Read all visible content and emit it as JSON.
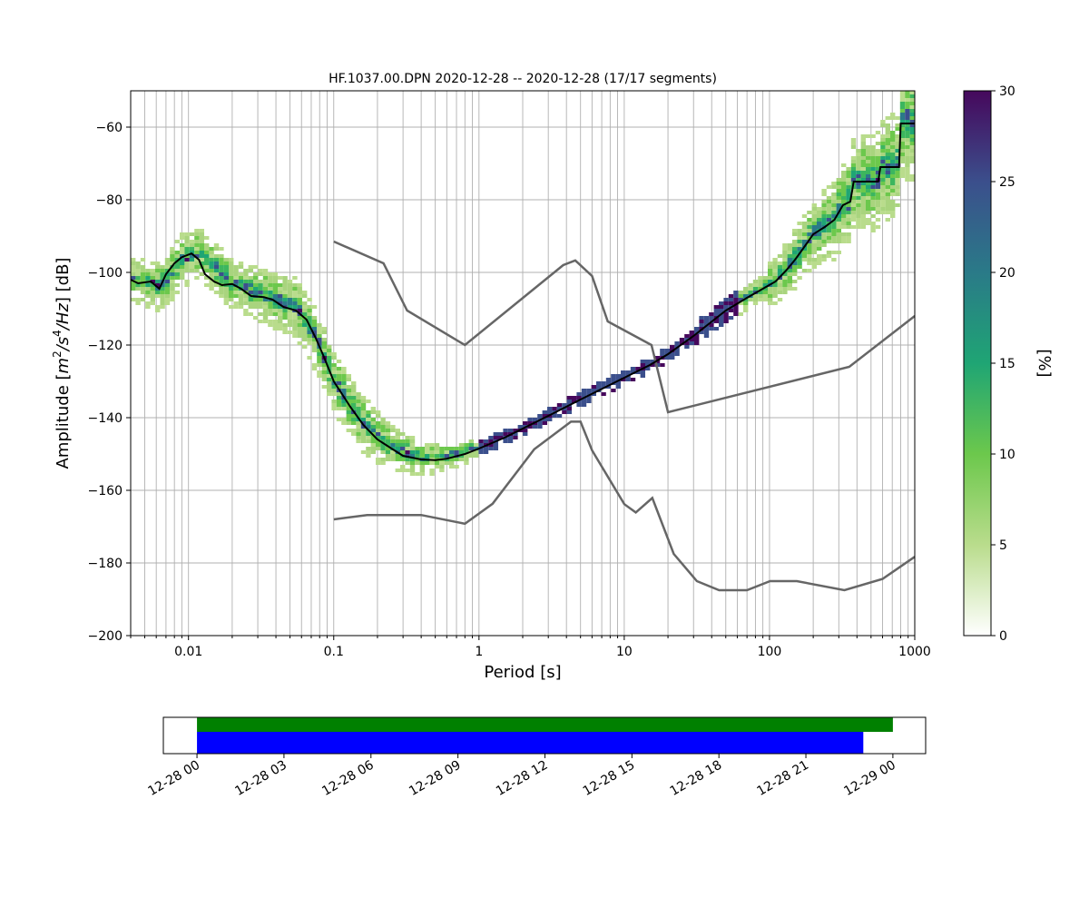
{
  "chart_data": [
    {
      "type": "heatmap",
      "title": "HF.1037.00.DPN   2020-12-28 -- 2020-12-28  (17/17 segments)",
      "xlabel": "Period [s]",
      "ylabel_parts": [
        "Amplitude [",
        "m",
        "2",
        "/",
        "s",
        "4",
        "/",
        "Hz",
        "] [dB]"
      ],
      "x_scale": "log",
      "xlim": [
        0.004,
        1000
      ],
      "ylim": [
        -200,
        -50
      ],
      "grid": true,
      "x_tick_labels": [
        {
          "value": 0.01,
          "label": "0.01"
        },
        {
          "value": 0.1,
          "label": "0.1"
        },
        {
          "value": 1,
          "label": "1"
        },
        {
          "value": 10,
          "label": "10"
        },
        {
          "value": 100,
          "label": "100"
        },
        {
          "value": 1000,
          "label": "1000"
        }
      ],
      "y_ticks": [
        -200,
        -180,
        -160,
        -140,
        -120,
        -100,
        -80,
        -60
      ],
      "y_tick_labels": [
        "−200",
        "−180",
        "−160",
        "−140",
        "−120",
        "−100",
        "−80",
        "−60"
      ],
      "colorbar": {
        "label": "[%]",
        "range": [
          0,
          30
        ],
        "ticks": [
          0,
          5,
          10,
          15,
          20,
          25,
          30
        ],
        "colormap": [
          "#ffffff",
          "#b9dc8c",
          "#6cc84c",
          "#1fa574",
          "#2a7a88",
          "#3b4f8c",
          "#46085c"
        ]
      },
      "mean_curve": {
        "color": "#000000",
        "points": [
          [
            0.004,
            -102
          ],
          [
            0.0045,
            -103
          ],
          [
            0.0055,
            -102.5
          ],
          [
            0.0063,
            -104.5
          ],
          [
            0.007,
            -100.5
          ],
          [
            0.008,
            -97.5
          ],
          [
            0.009,
            -95.8
          ],
          [
            0.0105,
            -94.8
          ],
          [
            0.0118,
            -96.5
          ],
          [
            0.013,
            -100.5
          ],
          [
            0.015,
            -102.5
          ],
          [
            0.017,
            -103.5
          ],
          [
            0.02,
            -103.2
          ],
          [
            0.023,
            -104.5
          ],
          [
            0.027,
            -106.5
          ],
          [
            0.033,
            -106.8
          ],
          [
            0.038,
            -107.5
          ],
          [
            0.045,
            -109.5
          ],
          [
            0.055,
            -110.5
          ],
          [
            0.065,
            -113
          ],
          [
            0.075,
            -118
          ],
          [
            0.085,
            -123
          ],
          [
            0.1,
            -130
          ],
          [
            0.13,
            -137
          ],
          [
            0.16,
            -142
          ],
          [
            0.2,
            -146
          ],
          [
            0.25,
            -148.5
          ],
          [
            0.3,
            -150.5
          ],
          [
            0.4,
            -151.5
          ],
          [
            0.5,
            -151.7
          ],
          [
            0.6,
            -151.3
          ],
          [
            0.8,
            -150
          ],
          [
            1.0,
            -148.5
          ],
          [
            1.5,
            -145.5
          ],
          [
            2,
            -143
          ],
          [
            3,
            -139.5
          ],
          [
            5,
            -135
          ],
          [
            10,
            -129
          ],
          [
            15,
            -125.5
          ],
          [
            20,
            -122.5
          ],
          [
            30,
            -117.5
          ],
          [
            50,
            -110.5
          ],
          [
            70,
            -107
          ],
          [
            90,
            -104.5
          ],
          [
            110,
            -102.5
          ],
          [
            130,
            -99.5
          ],
          [
            150,
            -96.5
          ],
          [
            170,
            -93.5
          ],
          [
            200,
            -89.5
          ],
          [
            240,
            -87.5
          ],
          [
            280,
            -85.5
          ],
          [
            320,
            -81.5
          ],
          [
            360,
            -80.5
          ],
          [
            380,
            -75
          ],
          [
            560,
            -75
          ],
          [
            580,
            -71
          ],
          [
            780,
            -71
          ],
          [
            800,
            -59
          ],
          [
            1000,
            -59
          ]
        ]
      },
      "model_curves": [
        {
          "color": "#666666",
          "points": [
            [
              0.1,
              -91.5
            ],
            [
              0.22,
              -97.5
            ],
            [
              0.32,
              -110.5
            ],
            [
              0.8,
              -120
            ],
            [
              3.8,
              -98
            ],
            [
              4.6,
              -96.7
            ],
            [
              6,
              -101
            ],
            [
              7.7,
              -113.5
            ],
            [
              15.4,
              -120
            ],
            [
              20,
              -138.5
            ],
            [
              354,
              -126
            ],
            [
              1000,
              -112
            ]
          ]
        },
        {
          "color": "#666666",
          "points": [
            [
              0.1,
              -168
            ],
            [
              0.17,
              -166.8
            ],
            [
              0.4,
              -166.8
            ],
            [
              0.8,
              -169.2
            ],
            [
              1.24,
              -163.7
            ],
            [
              2.4,
              -148.7
            ],
            [
              4.3,
              -141.1
            ],
            [
              5.0,
              -141.1
            ],
            [
              6.0,
              -149
            ],
            [
              10,
              -163.8
            ],
            [
              12,
              -166.1
            ],
            [
              15.6,
              -162.1
            ],
            [
              21.9,
              -177.5
            ],
            [
              31.6,
              -185
            ],
            [
              45,
              -187.5
            ],
            [
              70,
              -187.5
            ],
            [
              101,
              -185
            ],
            [
              154,
              -185
            ],
            [
              328,
              -187.5
            ],
            [
              600,
              -184.4
            ],
            [
              1000,
              -178.3
            ]
          ]
        }
      ],
      "heatmap_bands": [
        {
          "x": [
            0.004,
            0.0065,
            0.009,
            0.012,
            0.02,
            0.035,
            0.055,
            0.075,
            0.1,
            0.16,
            0.25,
            0.4,
            0.7,
            1.0
          ],
          "center": [
            -102,
            -104,
            -97,
            -95,
            -103,
            -107,
            -110,
            -118,
            -130,
            -142,
            -148.5,
            -151.5,
            -150.5,
            -148.5
          ],
          "spread": [
            5.5,
            6.5,
            7,
            6.5,
            6.5,
            7,
            8,
            8.5,
            8,
            7.5,
            6,
            4.5,
            3,
            2.5
          ]
        }
      ]
    },
    {
      "type": "timeline",
      "x_tick_labels": [
        "12-28 00",
        "12-28 03",
        "12-28 06",
        "12-28 09",
        "12-28 12",
        "12-28 15",
        "12-28 18",
        "12-28 21",
        "12-29 00"
      ],
      "xlim_hours": [
        -1.16,
        25.13
      ],
      "bars": [
        {
          "color": "#008000",
          "start_hour": 0,
          "end_hour": 24
        },
        {
          "color": "#0000ff",
          "start_hour": 0,
          "end_hour": 22.98
        }
      ]
    }
  ]
}
